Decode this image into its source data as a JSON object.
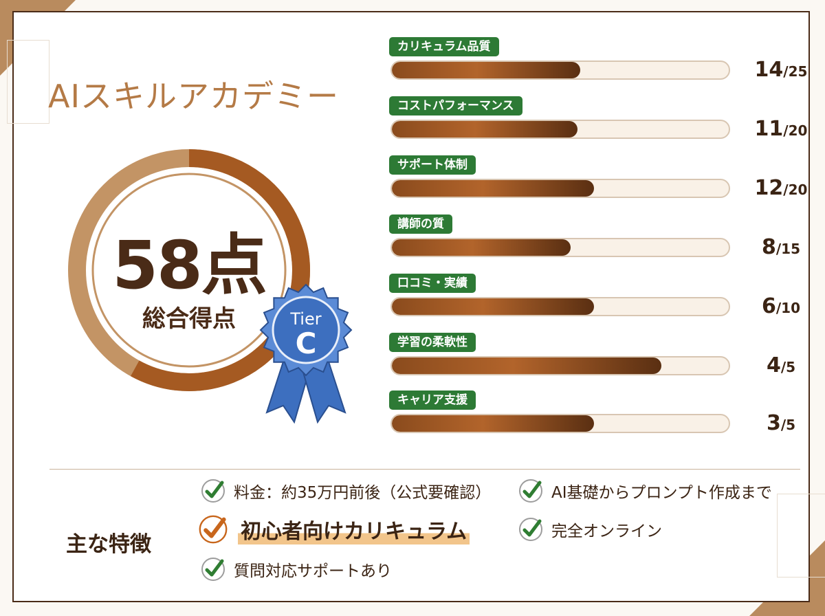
{
  "title": "AIスキルアカデミー",
  "score": {
    "value": "58点",
    "label": "総合得点",
    "ratio": 0.58
  },
  "tier": {
    "prefix": "Tier",
    "grade": "C"
  },
  "categories": [
    {
      "label": "カリキュラム品質",
      "score": "14",
      "max": "/25",
      "ratio": 0.56
    },
    {
      "label": "コストパフォーマンス",
      "score": "11",
      "max": "/20",
      "ratio": 0.55
    },
    {
      "label": "サポート体制",
      "score": "12",
      "max": "/20",
      "ratio": 0.6
    },
    {
      "label": "講師の質",
      "score": "8",
      "max": "/15",
      "ratio": 0.53
    },
    {
      "label": "口コミ・実績",
      "score": "6",
      "max": "/10",
      "ratio": 0.6
    },
    {
      "label": "学習の柔軟性",
      "score": "4",
      "max": "/5",
      "ratio": 0.8
    },
    {
      "label": "キャリア支援",
      "score": "3",
      "max": "/5",
      "ratio": 0.6
    }
  ],
  "features": {
    "heading": "主な特徴",
    "items": [
      "料金：約35万円前後（公式要確認）",
      "AI基礎からプロンプト作成まで",
      "初心者向けカリキュラム",
      "完全オンライン",
      "質問対応サポートあり"
    ]
  },
  "colors": {
    "accent_brown": "#8a4b1d",
    "pill_green": "#2d7a35",
    "check_green": "#2f7d32",
    "check_orange": "#c8661c",
    "badge_blue": "#3d6fbf"
  }
}
